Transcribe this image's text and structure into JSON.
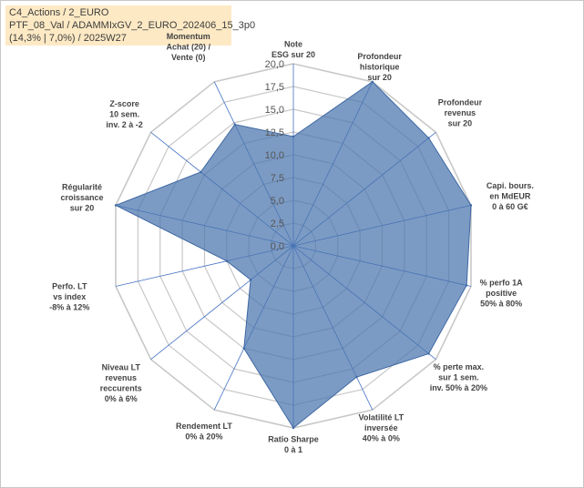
{
  "info": {
    "line1": "C4_Actions / 2_EURO",
    "line2": "PTF_08_Val / ADAMMIxGV_2_EURO_202406_15_3p0",
    "line3": "(14,3% | 7,0%) / 2025W27"
  },
  "chart_data": {
    "type": "radar",
    "rlim": [
      0,
      20
    ],
    "ticks": [
      "0,0",
      "2,5",
      "5,0",
      "7,5",
      "10,0",
      "12,5",
      "15,0",
      "17,5",
      "20,0"
    ],
    "categories": [
      [
        "Note",
        "ESG sur 20"
      ],
      [
        "Profondeur",
        "historique",
        "sur 20"
      ],
      [
        "Profondeur",
        "revenus",
        "sur 20"
      ],
      [
        "Capi. bours.",
        "en MdEUR",
        "0 à 60 G€"
      ],
      [
        "% perfo 1A",
        "positive",
        "50% à 80%"
      ],
      [
        "% perte max.",
        "sur 1 sem.",
        "inv. 50% à 20%"
      ],
      [
        "Volatilité LT",
        "inversée",
        "40% à 0%"
      ],
      [
        "Ratio Sharpe",
        "0 à 1"
      ],
      [
        "Rendement LT",
        "0% à 20%"
      ],
      [
        "Niveau LT",
        "revenus",
        "reccurents",
        "0% à 6%"
      ],
      [
        "Perfo. LT",
        "vs index",
        "-8% à 12%"
      ],
      [
        "Régularité",
        "croissance",
        "sur 20"
      ],
      [
        "Z-score",
        "10 sem.",
        "inv. 2 à -2"
      ],
      [
        "Momentum",
        "Achat (20) /",
        "Vente (0)"
      ]
    ],
    "values": [
      12.0,
      20.0,
      19.0,
      20.0,
      19.5,
      19.0,
      16.0,
      20.0,
      12.5,
      6.0,
      7.5,
      20.0,
      13.0,
      14.8
    ],
    "colors": {
      "fill": "#4a74ad",
      "edge": "#3d67a3",
      "grid": "#c8c8c8",
      "spoke": "#4472c4"
    }
  }
}
